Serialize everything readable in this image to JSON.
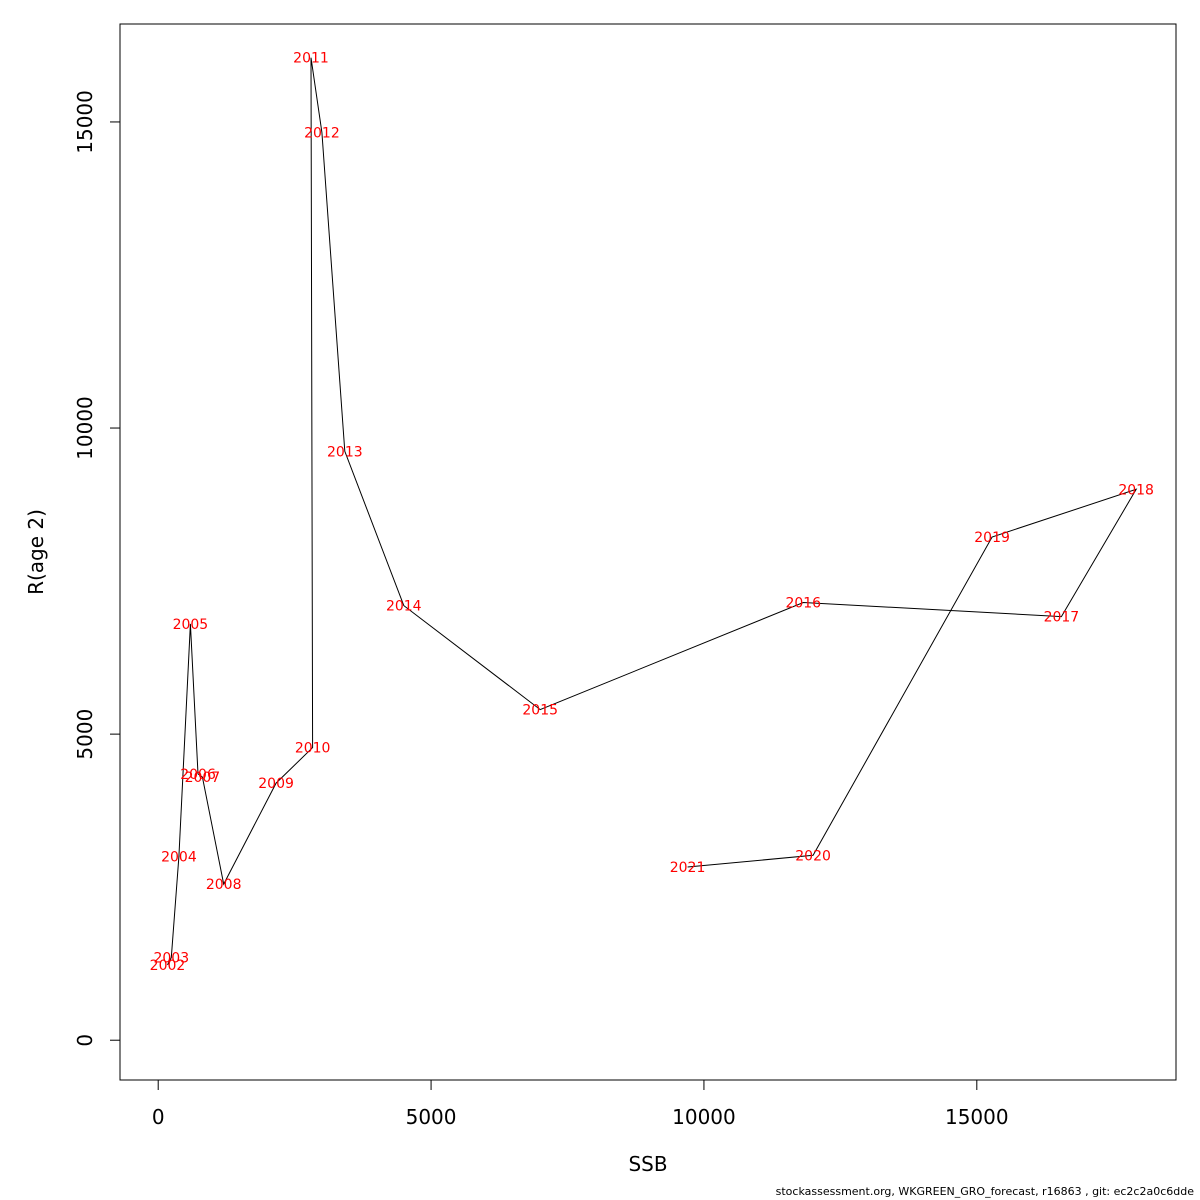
{
  "chart_data": {
    "type": "line",
    "title": "",
    "xlabel": "SSB",
    "ylabel": "R(age 2)",
    "xlim": [
      -700,
      18650
    ],
    "ylim": [
      -650,
      16600
    ],
    "xticks": [
      0,
      5000,
      10000,
      15000
    ],
    "yticks": [
      0,
      5000,
      10000,
      15000
    ],
    "xtick_labels": [
      "0",
      "5000",
      "10000",
      "15000"
    ],
    "ytick_labels": [
      "0",
      "5000",
      "10000",
      "15000"
    ],
    "grid": false,
    "line_color": "#000000",
    "label_color": "#ff0000",
    "points": [
      {
        "label": "2002",
        "x": 170,
        "y": 1230
      },
      {
        "label": "2003",
        "x": 240,
        "y": 1350
      },
      {
        "label": "2004",
        "x": 380,
        "y": 3000
      },
      {
        "label": "2005",
        "x": 590,
        "y": 6800
      },
      {
        "label": "2006",
        "x": 730,
        "y": 4350
      },
      {
        "label": "2007",
        "x": 810,
        "y": 4300
      },
      {
        "label": "2008",
        "x": 1200,
        "y": 2550
      },
      {
        "label": "2009",
        "x": 2160,
        "y": 4200
      },
      {
        "label": "2010",
        "x": 2830,
        "y": 4780
      },
      {
        "label": "2011",
        "x": 2800,
        "y": 16050
      },
      {
        "label": "2012",
        "x": 3000,
        "y": 14830
      },
      {
        "label": "2013",
        "x": 3420,
        "y": 9620
      },
      {
        "label": "2014",
        "x": 4500,
        "y": 7100
      },
      {
        "label": "2015",
        "x": 7000,
        "y": 5400
      },
      {
        "label": "2016",
        "x": 11820,
        "y": 7150
      },
      {
        "label": "2017",
        "x": 16550,
        "y": 6920
      },
      {
        "label": "2018",
        "x": 17920,
        "y": 9000
      },
      {
        "label": "2019",
        "x": 15280,
        "y": 8220
      },
      {
        "label": "2020",
        "x": 12000,
        "y": 3020
      },
      {
        "label": "2021",
        "x": 9700,
        "y": 2830
      }
    ]
  },
  "footer": "stockassessment.org, WKGREEN_GRO_forecast, r16863 , git: ec2c2a0c6dde"
}
